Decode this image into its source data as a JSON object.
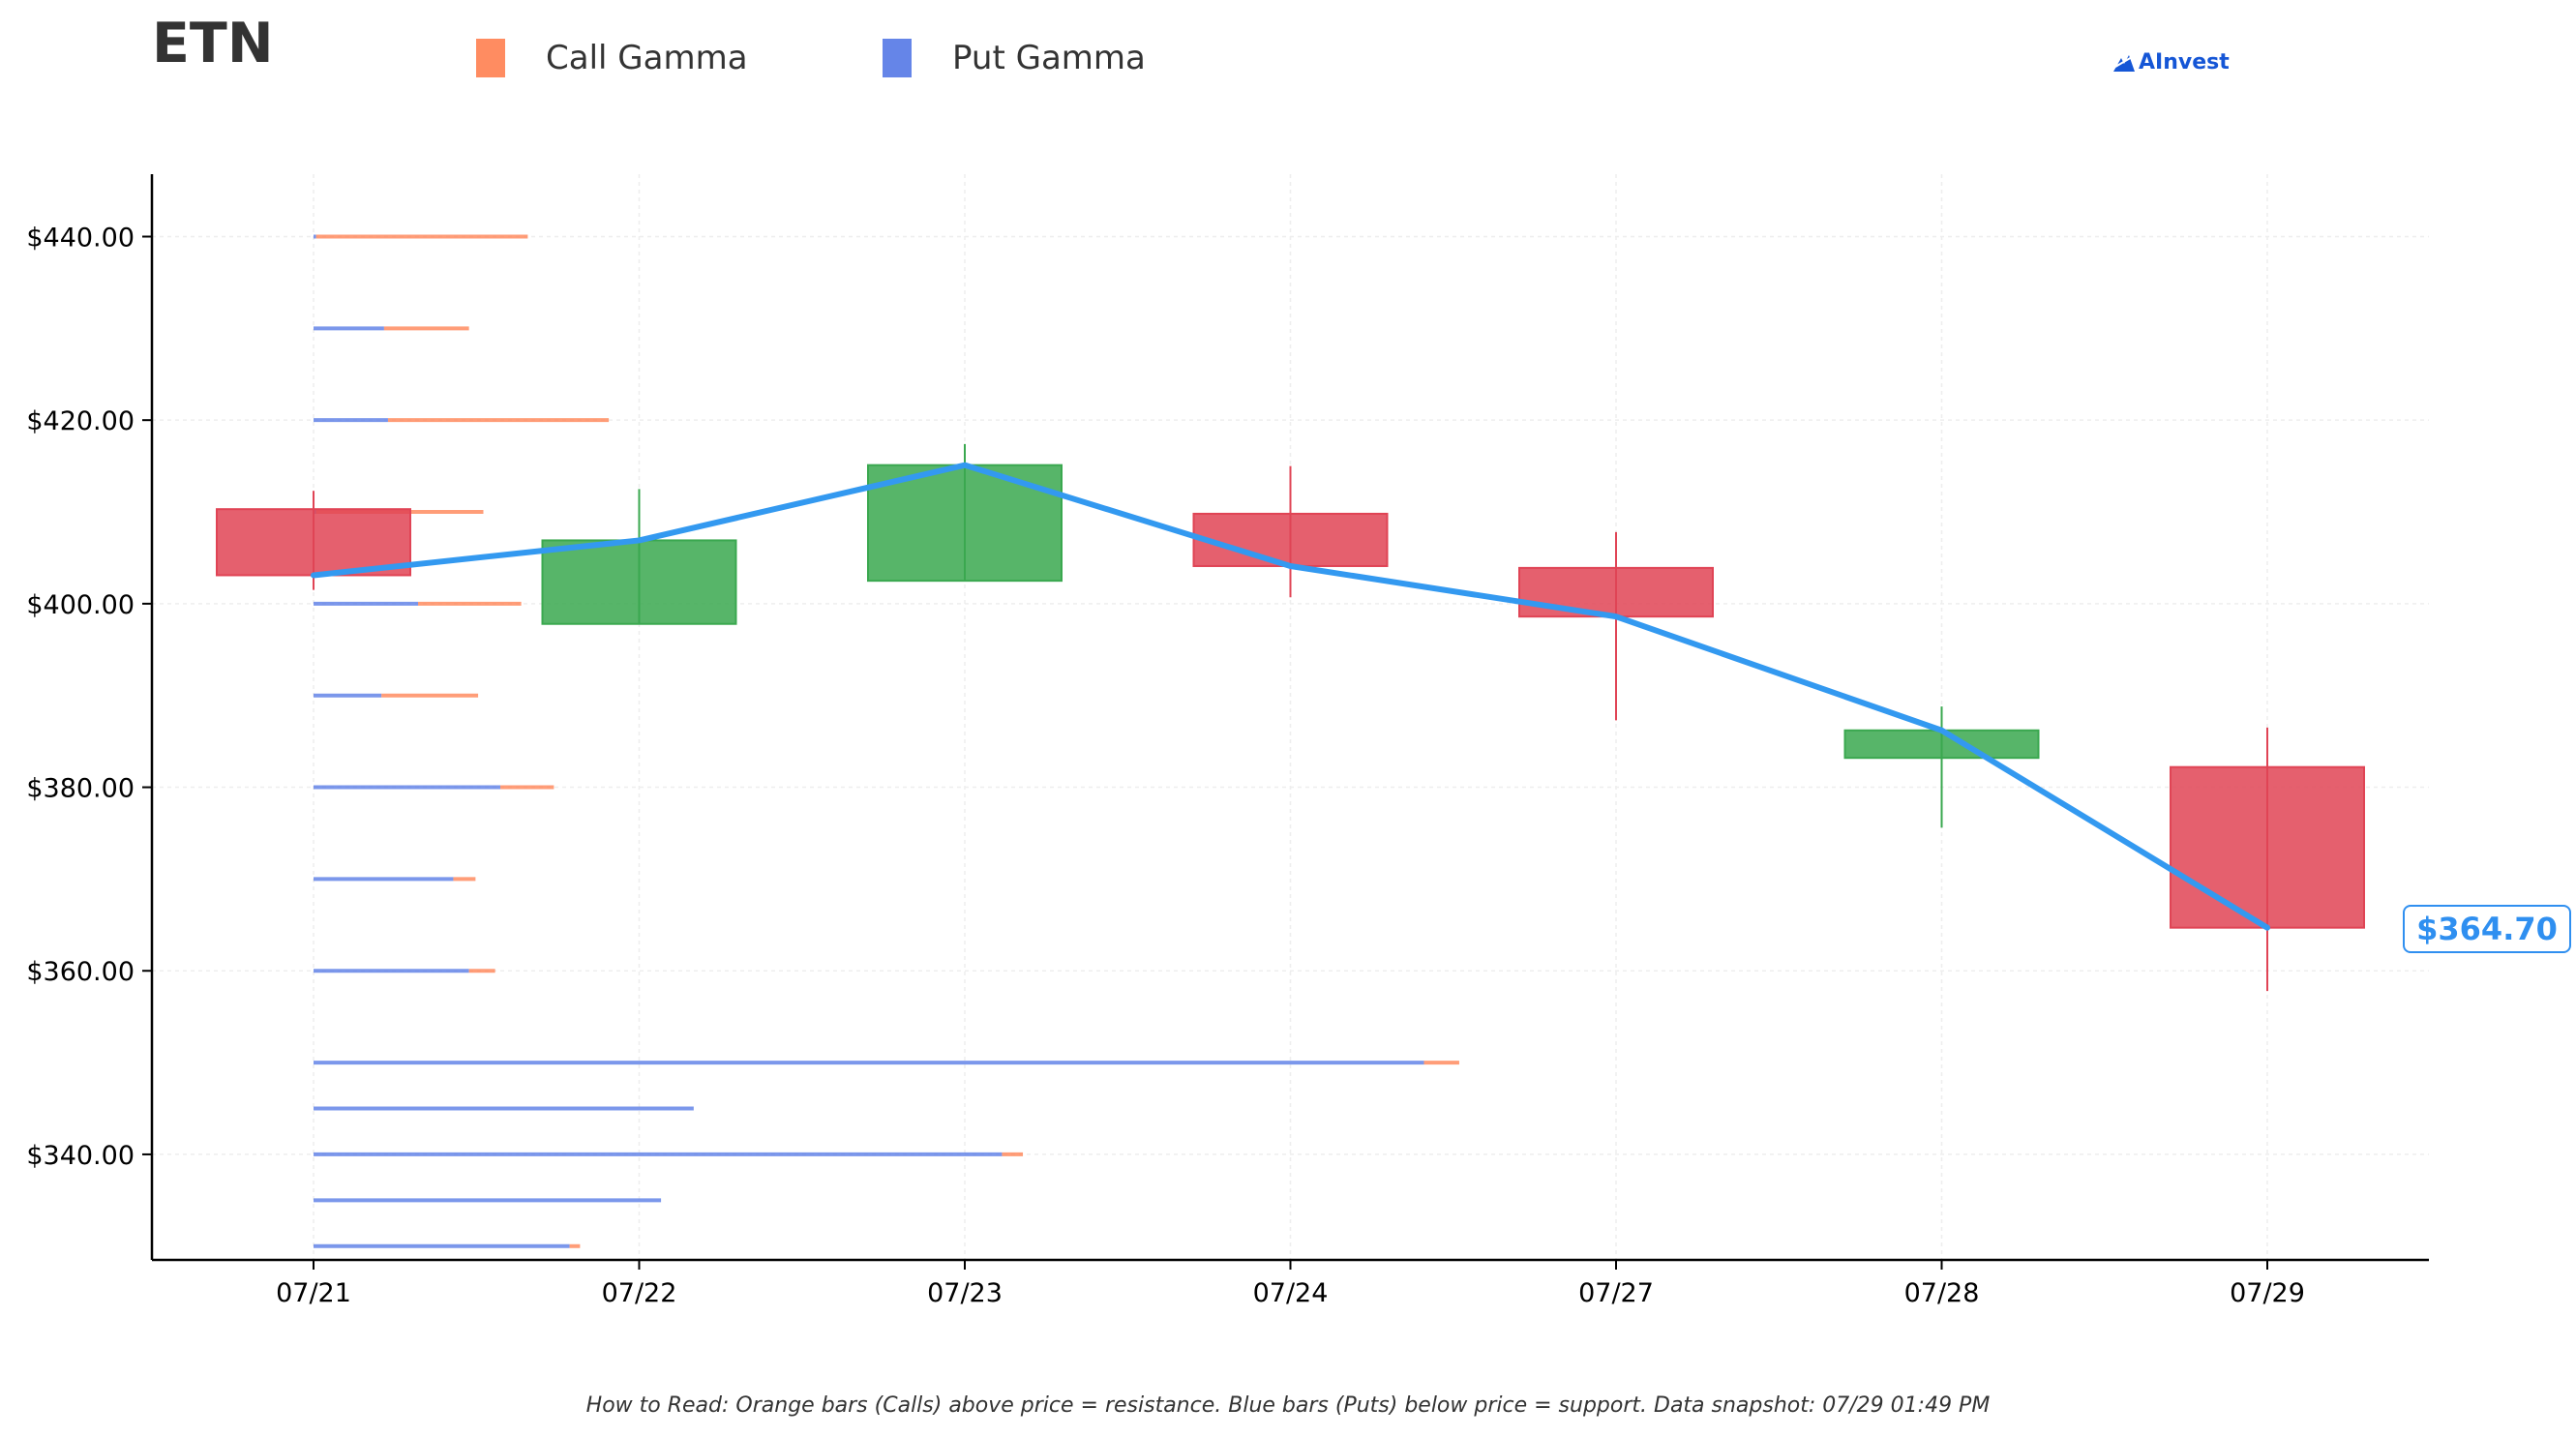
{
  "header": {
    "ticker": "ETN",
    "brand": "AInvest",
    "colors": {
      "call": "#ff8c61",
      "put": "#6585e8",
      "up": "#3aa84f",
      "down": "#e04455",
      "price_line": "#3399f0"
    }
  },
  "legend": [
    {
      "label": "Call Gamma",
      "color": "#ff8c61"
    },
    {
      "label": "Put Gamma",
      "color": "#6585e8"
    }
  ],
  "current_price_label": "$364.70",
  "footer": "How to Read: Orange bars (Calls) above price = resistance. Blue bars (Puts) below price = support. Data snapshot: 07/29 01:49 PM",
  "chart_data": {
    "type": "candlestick",
    "title": "ETN",
    "xlabel": "",
    "ylabel": "",
    "ylim": [
      328.5,
      446.8
    ],
    "y_ticks": [
      {
        "value": 340,
        "label": "$340.00"
      },
      {
        "value": 360,
        "label": "$360.00"
      },
      {
        "value": 380,
        "label": "$380.00"
      },
      {
        "value": 400,
        "label": "$400.00"
      },
      {
        "value": 420,
        "label": "$420.00"
      },
      {
        "value": 440,
        "label": "$440.00"
      }
    ],
    "categories": [
      "07/21",
      "07/22",
      "07/23",
      "07/24",
      "07/27",
      "07/28",
      "07/29"
    ],
    "candles": [
      {
        "date": "07/21",
        "open": 410.3,
        "close": 403.1,
        "high": 412.3,
        "low": 401.5
      },
      {
        "date": "07/22",
        "open": 397.8,
        "close": 406.9,
        "high": 412.5,
        "low": 397.8
      },
      {
        "date": "07/23",
        "open": 402.5,
        "close": 415.1,
        "high": 417.4,
        "low": 402.5
      },
      {
        "date": "07/24",
        "open": 409.8,
        "close": 404.1,
        "high": 415.0,
        "low": 400.7
      },
      {
        "date": "07/27",
        "open": 403.9,
        "close": 398.6,
        "high": 407.8,
        "low": 387.3
      },
      {
        "date": "07/28",
        "open": 383.2,
        "close": 386.2,
        "high": 388.8,
        "low": 375.6
      },
      {
        "date": "07/29",
        "open": 382.2,
        "close": 364.7,
        "high": 386.5,
        "low": 357.8
      }
    ],
    "price_line": {
      "name": "Close",
      "values": [
        403.1,
        406.9,
        415.1,
        404.1,
        398.6,
        386.2,
        364.7
      ]
    },
    "gamma_units": "relative",
    "gamma_levels": [
      {
        "strike": 440,
        "put": 0.02,
        "call": 1.62
      },
      {
        "strike": 430,
        "put": 0.54,
        "call": 0.65
      },
      {
        "strike": 420,
        "put": 0.57,
        "call": 1.69
      },
      {
        "strike": 410,
        "put": 0.02,
        "call": 1.28
      },
      {
        "strike": 400,
        "put": 0.8,
        "call": 0.79
      },
      {
        "strike": 390,
        "put": 0.52,
        "call": 0.74
      },
      {
        "strike": 380,
        "put": 1.43,
        "call": 0.41
      },
      {
        "strike": 370,
        "put": 1.07,
        "call": 0.17
      },
      {
        "strike": 360,
        "put": 1.19,
        "call": 0.2
      },
      {
        "strike": 350,
        "put": 8.5,
        "call": 0.27
      },
      {
        "strike": 345,
        "put": 2.91,
        "call": 0.0
      },
      {
        "strike": 340,
        "put": 5.27,
        "call": 0.16
      },
      {
        "strike": 335,
        "put": 2.66,
        "call": 0.0
      },
      {
        "strike": 330,
        "put": 1.96,
        "call": 0.08
      }
    ],
    "grid": true,
    "legend_position": "top"
  }
}
